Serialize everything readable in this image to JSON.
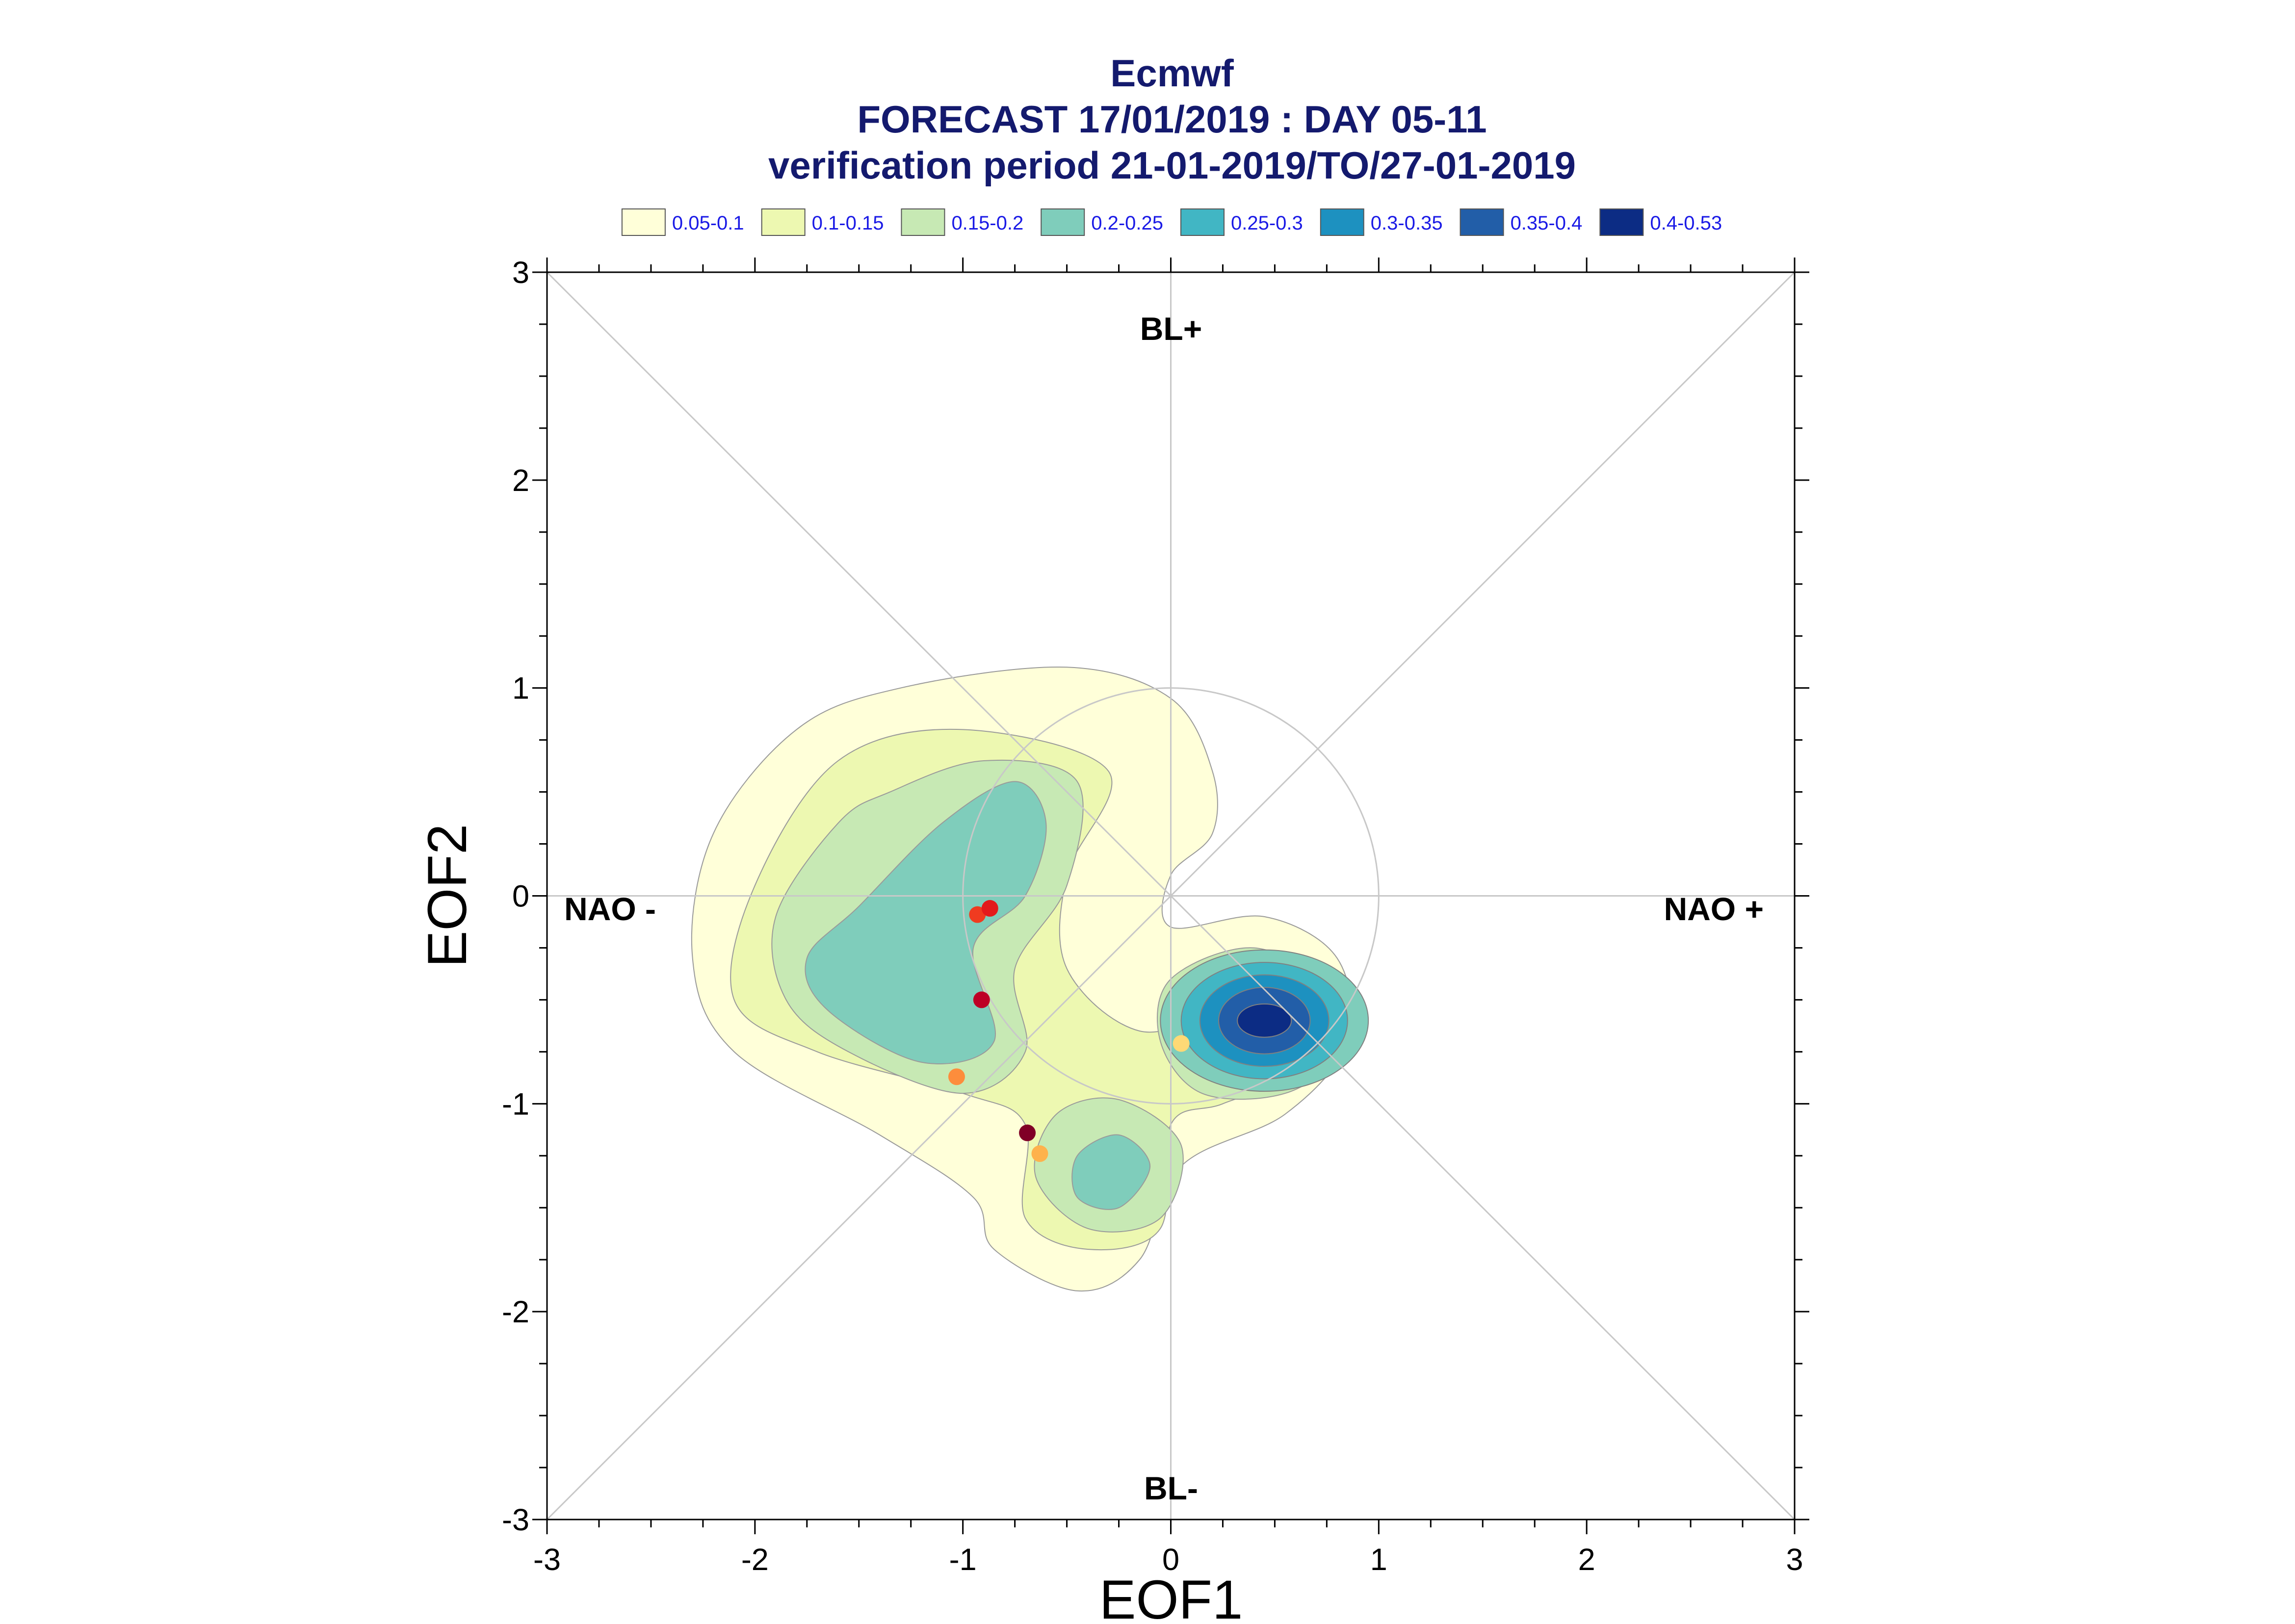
{
  "chart_data": {
    "type": "contour",
    "title_lines": [
      "Ecmwf",
      "FORECAST 17/01/2019 : DAY 05-11",
      "verification period 21-01-2019/TO/27-01-2019"
    ],
    "xlabel": "EOF1",
    "ylabel": "EOF2",
    "xlim": [
      -3,
      3
    ],
    "ylim": [
      -3,
      3
    ],
    "x_ticks": [
      "-3",
      "-2",
      "-1",
      "0",
      "1",
      "2",
      "3"
    ],
    "y_ticks": [
      "3",
      "2",
      "1",
      "0",
      "-1",
      "-2",
      "-3"
    ],
    "regime_labels": {
      "top": "BL+",
      "bottom": "BL-",
      "left": "NAO -",
      "right": "NAO +"
    },
    "legend": [
      {
        "label": "0.05-0.1",
        "color": "#ffffd9"
      },
      {
        "label": "0.1-0.15",
        "color": "#edf8b1"
      },
      {
        "label": "0.15-0.2",
        "color": "#c7e9b4"
      },
      {
        "label": "0.2-0.25",
        "color": "#7fcdbb"
      },
      {
        "label": "0.25-0.3",
        "color": "#41b6c4"
      },
      {
        "label": "0.3-0.35",
        "color": "#1d91c0"
      },
      {
        "label": "0.35-0.4",
        "color": "#225ea8"
      },
      {
        "label": "0.4-0.53",
        "color": "#0c2c84"
      }
    ],
    "reference_circle_radius": 1,
    "density_levels": [
      {
        "level": "0.05-0.1",
        "color": "#ffffd9",
        "outline": [
          [
            -1.3,
            1.0
          ],
          [
            -0.5,
            1.1
          ],
          [
            0.0,
            0.95
          ],
          [
            0.2,
            0.6
          ],
          [
            0.2,
            0.3
          ],
          [
            0.0,
            0.1
          ],
          [
            0.0,
            -0.15
          ],
          [
            0.45,
            -0.1
          ],
          [
            0.8,
            -0.3
          ],
          [
            0.85,
            -0.7
          ],
          [
            0.55,
            -1.05
          ],
          [
            0.05,
            -1.3
          ],
          [
            -0.15,
            -1.75
          ],
          [
            -0.45,
            -1.9
          ],
          [
            -0.85,
            -1.7
          ],
          [
            -0.95,
            -1.45
          ],
          [
            -1.4,
            -1.15
          ],
          [
            -2.1,
            -0.75
          ],
          [
            -2.3,
            -0.3
          ],
          [
            -2.2,
            0.3
          ],
          [
            -1.8,
            0.8
          ]
        ]
      },
      {
        "level": "0.1-0.15",
        "color": "#edf8b1",
        "outline": [
          [
            -1.6,
            0.65
          ],
          [
            -1.0,
            0.8
          ],
          [
            -0.3,
            0.6
          ],
          [
            -0.5,
            0.1
          ],
          [
            -0.5,
            -0.35
          ],
          [
            -0.15,
            -0.65
          ],
          [
            0.3,
            -0.55
          ],
          [
            0.6,
            -0.6
          ],
          [
            0.6,
            -0.85
          ],
          [
            0.25,
            -1.0
          ],
          [
            0.0,
            -1.1
          ],
          [
            -0.05,
            -1.6
          ],
          [
            -0.4,
            -1.7
          ],
          [
            -0.7,
            -1.55
          ],
          [
            -0.7,
            -1.1
          ],
          [
            -1.0,
            -0.95
          ],
          [
            -1.7,
            -0.75
          ],
          [
            -2.1,
            -0.5
          ],
          [
            -2.0,
            0.05
          ]
        ]
      },
      {
        "level": "0.15-0.2",
        "color": "#c7e9b4",
        "outline": [
          [
            -1.35,
            0.5
          ],
          [
            -0.9,
            0.65
          ],
          [
            -0.45,
            0.55
          ],
          [
            -0.5,
            0.05
          ],
          [
            -0.75,
            -0.35
          ],
          [
            -0.7,
            -0.75
          ],
          [
            -1.0,
            -0.95
          ],
          [
            -1.55,
            -0.75
          ],
          [
            -1.85,
            -0.5
          ],
          [
            -1.9,
            -0.1
          ],
          [
            -1.6,
            0.35
          ]
        ]
      },
      {
        "level": "0.2-0.25",
        "color": "#7fcdbb",
        "outline": [
          [
            -1.1,
            0.35
          ],
          [
            -0.75,
            0.55
          ],
          [
            -0.6,
            0.35
          ],
          [
            -0.7,
            0.0
          ],
          [
            -0.95,
            -0.25
          ],
          [
            -0.85,
            -0.7
          ],
          [
            -1.2,
            -0.8
          ],
          [
            -1.65,
            -0.55
          ],
          [
            -1.75,
            -0.3
          ],
          [
            -1.5,
            -0.05
          ]
        ]
      },
      {
        "level": "0.15-0.2",
        "color": "#c7e9b4",
        "outline": [
          [
            -0.25,
            -0.98
          ],
          [
            0.05,
            -1.2
          ],
          [
            -0.05,
            -1.55
          ],
          [
            -0.4,
            -1.6
          ],
          [
            -0.65,
            -1.35
          ],
          [
            -0.55,
            -1.05
          ]
        ]
      },
      {
        "level": "0.2-0.25",
        "color": "#7fcdbb",
        "outline": [
          [
            -0.25,
            -1.15
          ],
          [
            -0.1,
            -1.3
          ],
          [
            -0.25,
            -1.5
          ],
          [
            -0.45,
            -1.45
          ],
          [
            -0.45,
            -1.25
          ]
        ]
      },
      {
        "level": "0.15-0.2",
        "color": "#c7e9b4",
        "outline": [
          [
            0.0,
            -0.4
          ],
          [
            0.4,
            -0.25
          ],
          [
            0.75,
            -0.45
          ],
          [
            0.8,
            -0.75
          ],
          [
            0.55,
            -0.95
          ],
          [
            0.15,
            -0.95
          ],
          [
            -0.05,
            -0.7
          ]
        ]
      }
    ],
    "peak": {
      "x": 0.45,
      "y": -0.6,
      "radii_x": [
        0.5,
        0.4,
        0.31,
        0.22,
        0.13
      ],
      "radii_y": [
        0.34,
        0.28,
        0.22,
        0.16,
        0.08
      ],
      "colors": [
        "#7fcdbb",
        "#41b6c4",
        "#1d91c0",
        "#225ea8",
        "#0c2c84"
      ]
    },
    "points": [
      {
        "x": -0.93,
        "y": -0.09,
        "color": "#f03b20"
      },
      {
        "x": -0.87,
        "y": -0.06,
        "color": "#e31a1c"
      },
      {
        "x": -0.91,
        "y": -0.5,
        "color": "#bd0026"
      },
      {
        "x": -1.03,
        "y": -0.87,
        "color": "#fd8d3c"
      },
      {
        "x": -0.69,
        "y": -1.14,
        "color": "#800026"
      },
      {
        "x": -0.63,
        "y": -1.24,
        "color": "#feb24c"
      },
      {
        "x": 0.05,
        "y": -0.71,
        "color": "#fed976"
      }
    ]
  }
}
